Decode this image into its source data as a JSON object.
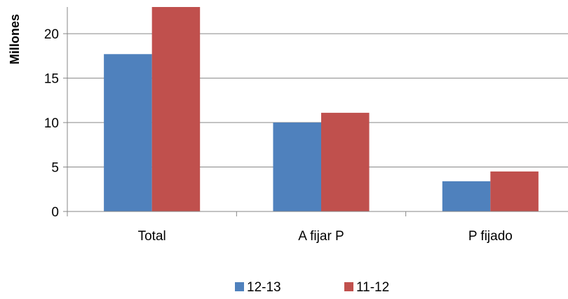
{
  "chart_data": {
    "type": "bar",
    "categories": [
      "Total",
      "A fijar P",
      "P fijado"
    ],
    "series": [
      {
        "name": "12-13",
        "color": "#4F81BD",
        "values": [
          17.7,
          10.0,
          3.4
        ]
      },
      {
        "name": "11-12",
        "color": "#C0504D",
        "values": [
          23.0,
          11.1,
          4.5
        ]
      }
    ],
    "ylabel": "Millones",
    "ylim": [
      0,
      23
    ],
    "yticks": [
      0,
      5,
      10,
      15,
      20
    ],
    "gridlines": true,
    "legend_position": "bottom"
  }
}
